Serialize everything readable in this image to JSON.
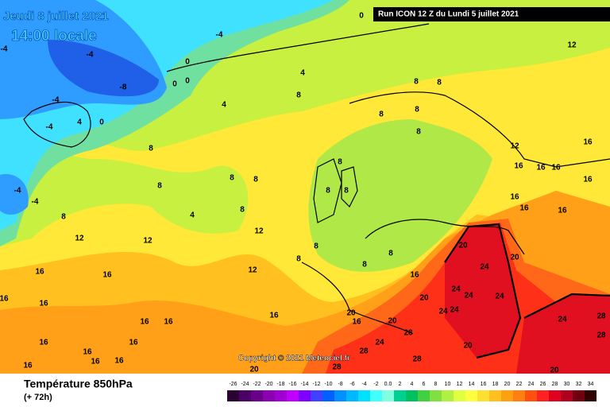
{
  "header": {
    "date": "Jeudi 8 juillet 2021",
    "time": "14:00 locale",
    "run": "Run ICON 12 Z du Lundi 5 juillet 2021"
  },
  "footer": {
    "copyright": "Copyright © 2021 Meteociel.fr",
    "title": "Température 850hPa",
    "lead": "(+ 72h)"
  },
  "colorbar": {
    "ticks": [
      -26,
      -24,
      -22,
      -20,
      -18,
      -16,
      -14,
      -12,
      -10,
      -8,
      -6,
      -4,
      -2,
      {
        "value": 0,
        "label": "0.0"
      },
      2,
      4,
      6,
      8,
      10,
      12,
      14,
      16,
      18,
      20,
      22,
      24,
      26,
      28,
      30,
      32,
      34
    ],
    "colors": [
      "#2b0033",
      "#4b0066",
      "#6a008a",
      "#8b00b0",
      "#a000d0",
      "#c000ff",
      "#8000ff",
      "#4040ff",
      "#0060ff",
      "#0090ff",
      "#00b8ff",
      "#00e0ff",
      "#40ffff",
      "#80ffe0",
      "#00d090",
      "#00c060",
      "#40d040",
      "#80e040",
      "#b0f040",
      "#e0ff40",
      "#ffff40",
      "#ffe030",
      "#ffc020",
      "#ffa010",
      "#ff8010",
      "#ff5010",
      "#ff2020",
      "#e00020",
      "#b00020",
      "#700010",
      "#300000"
    ]
  },
  "map": {
    "contour_labels": [
      "-4",
      "-4",
      "-4",
      "-8",
      "-4",
      "-4",
      "4",
      "0",
      "0",
      "0",
      "0",
      "4",
      "8",
      "4",
      "8",
      "8",
      "8",
      "8",
      "8",
      "8",
      "8",
      "8",
      "8",
      "4",
      "8",
      "8",
      "-4",
      "-4",
      "12",
      "12",
      "12",
      "12",
      "8",
      "8",
      "8",
      "8",
      "8",
      "8",
      "8",
      "12",
      "12",
      "16",
      "16",
      "16",
      "16",
      "16",
      "16",
      "16",
      "16",
      "16",
      "16",
      "16",
      "16",
      "16",
      "16",
      "16",
      "16",
      "20",
      "20",
      "24",
      "24",
      "24",
      "24",
      "24",
      "24",
      "20",
      "20",
      "16",
      "20",
      "28",
      "24",
      "28",
      "20",
      "28",
      "24",
      "28",
      "28",
      "20",
      "28",
      "20",
      "16",
      "16",
      "16",
      "16",
      "16",
      "16",
      "0"
    ]
  }
}
